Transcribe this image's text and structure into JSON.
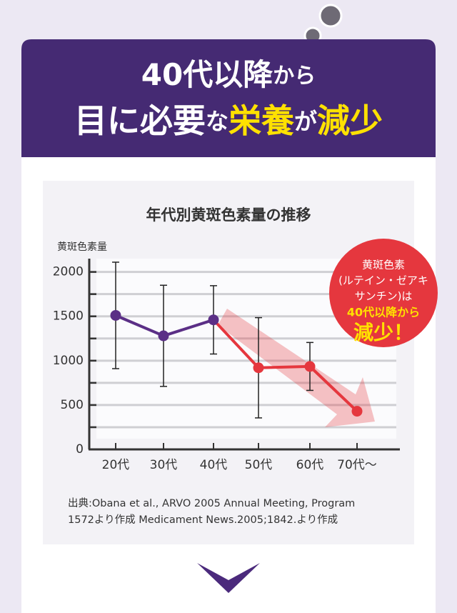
{
  "header": {
    "line1": [
      "40代以降",
      "から"
    ],
    "line2": [
      "目に必要",
      "な",
      "栄養",
      "が",
      "減少"
    ]
  },
  "chart_data": {
    "type": "line",
    "title": "年代別黄斑色素量の推移",
    "y_label": "黄斑色素量",
    "categories": [
      "20代",
      "30代",
      "40代",
      "50代",
      "60代",
      "70代〜"
    ],
    "values": [
      1510,
      1280,
      1460,
      920,
      935,
      430
    ],
    "errors": [
      600,
      570,
      385,
      565,
      270,
      null
    ],
    "point_colors": [
      "#5b2f86",
      "#5b2f86",
      "#5b2f86",
      "#e5373e",
      "#e5373e",
      "#e5373e"
    ],
    "ylim": [
      0,
      2150
    ],
    "yticks": [
      0,
      500,
      1000,
      1500,
      2000
    ],
    "minor_yticks": [
      250,
      750,
      1250,
      1750
    ],
    "grid": true,
    "callout": [
      "黄斑色素",
      "(ルテイン・ゼアキ",
      "サンチン)は",
      "40代以降から",
      "減少！"
    ]
  },
  "source": [
    "出典:Obana et al., ARVO 2005 Annual Meeting, Program",
    "1572より作成 Medicament News.2005;1842.より作成"
  ]
}
